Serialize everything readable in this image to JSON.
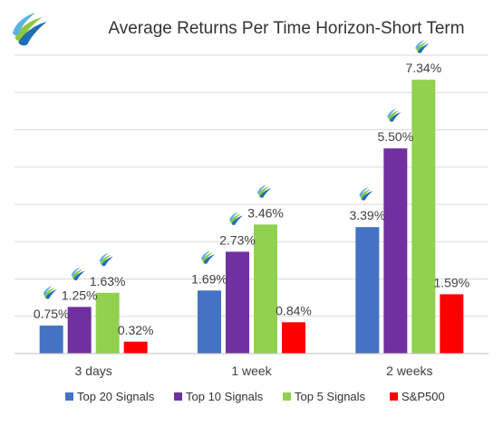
{
  "chart_data": {
    "type": "bar",
    "title": "Average Returns Per Time Horizon-Short Term",
    "categories": [
      "3 days",
      "1 week",
      "2 weeks"
    ],
    "series": [
      {
        "name": "Top 20 Signals",
        "color": "#4472C4",
        "values": [
          0.75,
          1.69,
          3.39
        ],
        "labels": [
          "0.75%",
          "1.69%",
          "3.39%"
        ]
      },
      {
        "name": "Top 10 Signals",
        "color": "#7030A0",
        "values": [
          1.25,
          2.73,
          5.5
        ],
        "labels": [
          "1.25%",
          "2.73%",
          "5.50%"
        ]
      },
      {
        "name": "Top 5 Signals",
        "color": "#92D050",
        "values": [
          1.63,
          3.46,
          7.34
        ],
        "labels": [
          "1.63%",
          "3.46%",
          "7.34%"
        ]
      },
      {
        "name": "S&P500",
        "color": "#FF0000",
        "values": [
          0.32,
          0.84,
          1.59
        ],
        "labels": [
          "0.32%",
          "0.84%",
          "1.59%"
        ]
      }
    ],
    "ylim": [
      0,
      8
    ],
    "grid": true,
    "legend_position": "bottom",
    "logo_marked_bars": [
      {
        "category": "3 days",
        "series": "Top 20 Signals"
      },
      {
        "category": "3 days",
        "series": "Top 10 Signals"
      },
      {
        "category": "3 days",
        "series": "Top 5 Signals"
      },
      {
        "category": "1 week",
        "series": "Top 20 Signals"
      },
      {
        "category": "1 week",
        "series": "Top 10 Signals"
      },
      {
        "category": "1 week",
        "series": "Top 5 Signals"
      },
      {
        "category": "2 weeks",
        "series": "Top 20 Signals"
      },
      {
        "category": "2 weeks",
        "series": "Top 10 Signals"
      },
      {
        "category": "2 weeks",
        "series": "Top 5 Signals"
      }
    ],
    "logo_colors": {
      "green": "#8DC63F",
      "blue": "#1F6FB2"
    }
  }
}
